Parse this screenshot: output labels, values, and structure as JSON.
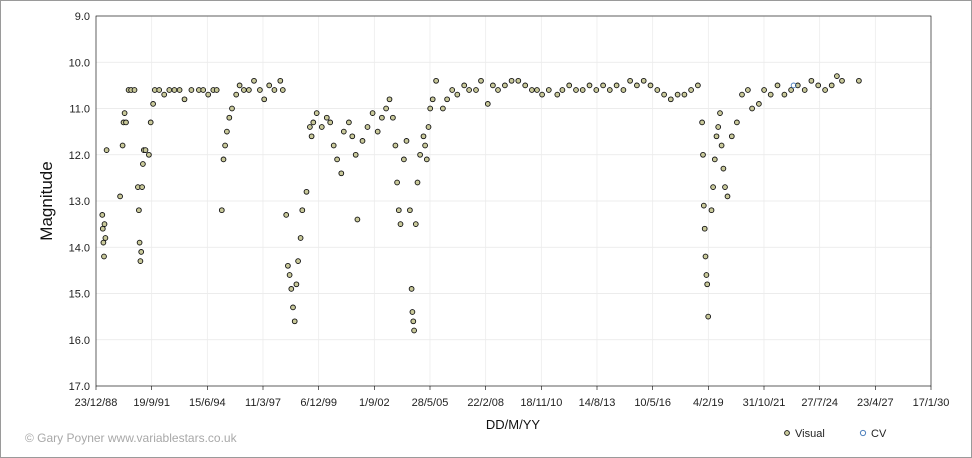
{
  "chart_data": {
    "type": "scatter",
    "title": "",
    "xlabel": "DD/M/YY",
    "ylabel": "Magnitude",
    "y_axis_reversed": true,
    "ylim": [
      9.0,
      17.0
    ],
    "xlim": [
      "1988-12-23",
      "2030-01-17"
    ],
    "grid": true,
    "legend_position": "bottom-right",
    "x_tick_labels": [
      "23/12/88",
      "19/9/91",
      "15/6/94",
      "11/3/97",
      "6/12/99",
      "1/9/02",
      "28/5/05",
      "22/2/08",
      "18/11/10",
      "14/8/13",
      "10/5/16",
      "4/2/19",
      "31/10/21",
      "27/7/24",
      "23/4/27",
      "17/1/30"
    ],
    "y_tick_labels": [
      "9.0",
      "10.0",
      "11.0",
      "12.0",
      "13.0",
      "14.0",
      "15.0",
      "16.0",
      "17.0"
    ],
    "series": [
      {
        "name": "Visual",
        "marker": "circle",
        "fill": "#c9c99a",
        "stroke": "#111111",
        "points": [
          [
            "1989-04-15",
            13.3
          ],
          [
            "1989-04-25",
            13.6
          ],
          [
            "1989-05-05",
            13.9
          ],
          [
            "1989-05-15",
            14.2
          ],
          [
            "1989-05-25",
            13.5
          ],
          [
            "1989-06-10",
            13.8
          ],
          [
            "1989-07-01",
            11.9
          ],
          [
            "1990-03-01",
            12.9
          ],
          [
            "1990-04-15",
            11.8
          ],
          [
            "1990-05-01",
            11.3
          ],
          [
            "1990-05-20",
            11.1
          ],
          [
            "1990-06-15",
            11.3
          ],
          [
            "1990-08-01",
            10.6
          ],
          [
            "1990-09-15",
            10.6
          ],
          [
            "1990-11-15",
            10.6
          ],
          [
            "1991-01-15",
            12.7
          ],
          [
            "1991-02-01",
            13.2
          ],
          [
            "1991-02-15",
            13.9
          ],
          [
            "1991-03-01",
            14.3
          ],
          [
            "1991-03-15",
            14.1
          ],
          [
            "1991-04-01",
            12.7
          ],
          [
            "1991-04-15",
            12.2
          ],
          [
            "1991-05-01",
            11.9
          ],
          [
            "1991-06-01",
            11.9
          ],
          [
            "1991-08-01",
            12.0
          ],
          [
            "1991-09-01",
            11.3
          ],
          [
            "1991-10-15",
            10.9
          ],
          [
            "1991-11-15",
            10.6
          ],
          [
            "1992-02-01",
            10.6
          ],
          [
            "1992-05-01",
            10.7
          ],
          [
            "1992-08-01",
            10.6
          ],
          [
            "1992-11-01",
            10.6
          ],
          [
            "1993-02-01",
            10.6
          ],
          [
            "1993-05-01",
            10.8
          ],
          [
            "1993-09-01",
            10.6
          ],
          [
            "1994-01-15",
            10.6
          ],
          [
            "1994-04-01",
            10.6
          ],
          [
            "1994-07-01",
            10.7
          ],
          [
            "1994-10-01",
            10.6
          ],
          [
            "1994-12-01",
            10.6
          ],
          [
            "1995-03-01",
            13.2
          ],
          [
            "1995-04-01",
            12.1
          ],
          [
            "1995-05-01",
            11.8
          ],
          [
            "1995-06-01",
            11.5
          ],
          [
            "1995-07-15",
            11.2
          ],
          [
            "1995-09-01",
            11.0
          ],
          [
            "1995-11-15",
            10.7
          ],
          [
            "1996-01-15",
            10.5
          ],
          [
            "1996-04-01",
            10.6
          ],
          [
            "1996-07-01",
            10.6
          ],
          [
            "1996-10-01",
            10.4
          ],
          [
            "1997-01-15",
            10.6
          ],
          [
            "1997-04-01",
            10.8
          ],
          [
            "1997-07-01",
            10.5
          ],
          [
            "1997-10-01",
            10.6
          ],
          [
            "1998-01-15",
            10.4
          ],
          [
            "1998-03-01",
            10.6
          ],
          [
            "1998-05-01",
            13.3
          ],
          [
            "1998-06-01",
            14.4
          ],
          [
            "1998-07-01",
            14.6
          ],
          [
            "1998-08-01",
            14.9
          ],
          [
            "1998-09-01",
            15.3
          ],
          [
            "1998-10-01",
            15.6
          ],
          [
            "1998-11-01",
            14.8
          ],
          [
            "1998-12-01",
            14.3
          ],
          [
            "1999-01-15",
            13.8
          ],
          [
            "1999-02-15",
            13.2
          ],
          [
            "1999-05-01",
            12.8
          ],
          [
            "1999-07-01",
            11.4
          ],
          [
            "1999-08-01",
            11.6
          ],
          [
            "1999-09-01",
            11.3
          ],
          [
            "1999-11-01",
            11.1
          ],
          [
            "2000-02-01",
            11.4
          ],
          [
            "2000-05-01",
            11.2
          ],
          [
            "2000-07-01",
            11.3
          ],
          [
            "2000-09-01",
            11.8
          ],
          [
            "2000-11-01",
            12.1
          ],
          [
            "2001-01-15",
            12.4
          ],
          [
            "2001-03-01",
            11.5
          ],
          [
            "2001-06-01",
            11.3
          ],
          [
            "2001-08-01",
            11.6
          ],
          [
            "2001-10-01",
            12.0
          ],
          [
            "2001-11-01",
            13.4
          ],
          [
            "2002-02-01",
            11.7
          ],
          [
            "2002-05-01",
            11.4
          ],
          [
            "2002-08-01",
            11.1
          ],
          [
            "2002-11-01",
            11.5
          ],
          [
            "2003-01-15",
            11.2
          ],
          [
            "2003-04-01",
            11.0
          ],
          [
            "2003-06-01",
            10.8
          ],
          [
            "2003-08-01",
            11.2
          ],
          [
            "2003-09-15",
            11.8
          ],
          [
            "2003-10-15",
            12.6
          ],
          [
            "2003-11-15",
            13.2
          ],
          [
            "2003-12-15",
            13.5
          ],
          [
            "2004-02-15",
            12.1
          ],
          [
            "2004-04-01",
            11.7
          ],
          [
            "2004-06-01",
            13.2
          ],
          [
            "2004-07-01",
            14.9
          ],
          [
            "2004-07-15",
            15.4
          ],
          [
            "2004-08-01",
            15.6
          ],
          [
            "2004-08-15",
            15.8
          ],
          [
            "2004-09-15",
            13.5
          ],
          [
            "2004-10-15",
            12.6
          ],
          [
            "2004-12-01",
            12.0
          ],
          [
            "2005-02-01",
            11.6
          ],
          [
            "2005-03-01",
            11.8
          ],
          [
            "2005-04-01",
            12.1
          ],
          [
            "2005-05-01",
            11.4
          ],
          [
            "2005-06-01",
            11.0
          ],
          [
            "2005-07-15",
            10.8
          ],
          [
            "2005-09-15",
            10.4
          ],
          [
            "2006-01-15",
            11.0
          ],
          [
            "2006-04-01",
            10.8
          ],
          [
            "2006-07-01",
            10.6
          ],
          [
            "2006-10-01",
            10.7
          ],
          [
            "2007-02-01",
            10.5
          ],
          [
            "2007-05-01",
            10.6
          ],
          [
            "2007-09-01",
            10.6
          ],
          [
            "2007-12-01",
            10.4
          ],
          [
            "2008-04-01",
            10.9
          ],
          [
            "2008-07-01",
            10.5
          ],
          [
            "2008-10-01",
            10.6
          ],
          [
            "2009-02-01",
            10.5
          ],
          [
            "2009-06-01",
            10.4
          ],
          [
            "2009-10-01",
            10.4
          ],
          [
            "2010-02-01",
            10.5
          ],
          [
            "2010-06-01",
            10.6
          ],
          [
            "2010-09-01",
            10.6
          ],
          [
            "2010-12-01",
            10.7
          ],
          [
            "2011-04-01",
            10.6
          ],
          [
            "2011-09-01",
            10.7
          ],
          [
            "2011-12-01",
            10.6
          ],
          [
            "2012-04-01",
            10.5
          ],
          [
            "2012-08-01",
            10.6
          ],
          [
            "2012-12-01",
            10.6
          ],
          [
            "2013-04-01",
            10.5
          ],
          [
            "2013-08-01",
            10.6
          ],
          [
            "2013-12-01",
            10.5
          ],
          [
            "2014-04-01",
            10.6
          ],
          [
            "2014-08-01",
            10.5
          ],
          [
            "2014-12-01",
            10.6
          ],
          [
            "2015-04-01",
            10.4
          ],
          [
            "2015-08-01",
            10.5
          ],
          [
            "2015-12-01",
            10.4
          ],
          [
            "2016-04-01",
            10.5
          ],
          [
            "2016-08-01",
            10.6
          ],
          [
            "2016-12-01",
            10.7
          ],
          [
            "2017-04-01",
            10.8
          ],
          [
            "2017-08-01",
            10.7
          ],
          [
            "2017-12-01",
            10.7
          ],
          [
            "2018-04-01",
            10.6
          ],
          [
            "2018-08-01",
            10.5
          ],
          [
            "2018-10-15",
            11.3
          ],
          [
            "2018-11-01",
            12.0
          ],
          [
            "2018-11-15",
            13.1
          ],
          [
            "2018-12-01",
            13.6
          ],
          [
            "2018-12-15",
            14.2
          ],
          [
            "2019-01-01",
            14.6
          ],
          [
            "2019-01-15",
            14.8
          ],
          [
            "2019-02-01",
            15.5
          ],
          [
            "2019-04-01",
            13.2
          ],
          [
            "2019-05-01",
            12.7
          ],
          [
            "2019-06-01",
            12.1
          ],
          [
            "2019-07-01",
            11.6
          ],
          [
            "2019-08-01",
            11.4
          ],
          [
            "2019-09-01",
            11.1
          ],
          [
            "2019-10-01",
            11.8
          ],
          [
            "2019-11-01",
            12.3
          ],
          [
            "2019-12-01",
            12.7
          ],
          [
            "2020-01-15",
            12.9
          ],
          [
            "2020-04-01",
            11.6
          ],
          [
            "2020-07-01",
            11.3
          ],
          [
            "2020-10-01",
            10.7
          ],
          [
            "2021-01-15",
            10.6
          ],
          [
            "2021-04-01",
            11.0
          ],
          [
            "2021-08-01",
            10.9
          ],
          [
            "2021-11-01",
            10.6
          ],
          [
            "2022-03-01",
            10.7
          ],
          [
            "2022-07-01",
            10.5
          ],
          [
            "2022-11-01",
            10.7
          ],
          [
            "2023-03-01",
            10.6
          ],
          [
            "2023-07-01",
            10.5
          ],
          [
            "2023-11-01",
            10.6
          ],
          [
            "2024-03-01",
            10.4
          ],
          [
            "2024-07-01",
            10.5
          ],
          [
            "2024-11-01",
            10.6
          ],
          [
            "2025-03-01",
            10.5
          ],
          [
            "2025-06-01",
            10.3
          ],
          [
            "2025-09-01",
            10.4
          ],
          [
            "2026-07-01",
            10.4
          ]
        ]
      },
      {
        "name": "CV",
        "marker": "circle",
        "fill": "none",
        "stroke": "#4f81bd",
        "points": [
          [
            "2023-04-15",
            10.5
          ]
        ]
      }
    ]
  },
  "credit": "© Gary Poyner www.variablestars.co.uk",
  "legend": {
    "visual_label": "Visual",
    "cv_label": "CV"
  }
}
